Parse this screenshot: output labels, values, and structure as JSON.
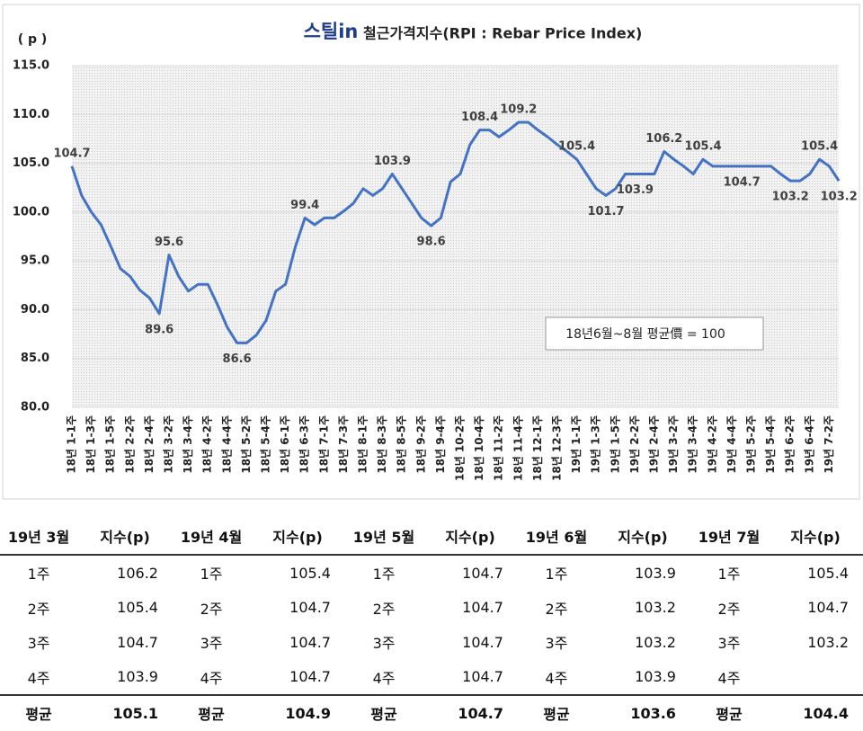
{
  "chart_data": {
    "type": "line",
    "logo": "스틸in",
    "title": "철근가격지수(RPI : Rebar Price Index)",
    "y_unit": "( p )",
    "note": "18년6월~8월 평균價 = 100",
    "categories": [
      "18년 1-1주",
      null,
      "18년 1-3주",
      null,
      "18년 1-5주",
      null,
      "18년 2-2주",
      null,
      "18년 2-4주",
      null,
      "18년 3-2주",
      null,
      "18년 3-4주",
      null,
      "18년 4-2주",
      null,
      "18년 4-4주",
      null,
      "18년 5-2주",
      null,
      "18년 5-4주",
      null,
      "18년 6-1주",
      null,
      "18년 6-3주",
      null,
      "18년 7-1주",
      null,
      "18년 7-3주",
      null,
      "18년 8-1주",
      null,
      "18년 8-3주",
      null,
      "18년 8-5주",
      null,
      "18년 9-2주",
      null,
      "18년 9-4주",
      null,
      "18년 10-2주",
      null,
      "18년 10-4주",
      null,
      "18년 11-2주",
      null,
      "18년 11-4주",
      null,
      "18년 12-1주",
      null,
      "18년 12-3주",
      null,
      "19년 1-1주",
      null,
      "19년 1-3주",
      null,
      "19년 1-5주",
      null,
      "19년 2-2주",
      null,
      "19년 2-4주",
      null,
      "19년 3-2주",
      null,
      "19년 3-4주",
      null,
      "19년 4-2주",
      null,
      "19년 4-4주",
      null,
      "19년 5-2주",
      null,
      "19년 5-4주",
      null,
      "19년 6-2주",
      null,
      "19년 6-4주",
      null,
      "19년 7-2주",
      null
    ],
    "values": [
      104.7,
      101.7,
      100.0,
      98.7,
      96.5,
      94.2,
      93.4,
      92.0,
      91.2,
      89.6,
      95.6,
      93.4,
      91.9,
      92.6,
      92.6,
      90.5,
      88.2,
      86.6,
      86.6,
      87.4,
      88.9,
      91.9,
      92.6,
      96.4,
      99.4,
      98.7,
      99.4,
      99.4,
      100.1,
      100.9,
      102.4,
      101.7,
      102.4,
      103.9,
      102.4,
      100.9,
      99.4,
      98.6,
      99.4,
      103.1,
      103.9,
      106.9,
      108.4,
      108.4,
      107.7,
      108.4,
      109.2,
      109.2,
      108.4,
      107.7,
      106.9,
      106.2,
      105.4,
      103.9,
      102.4,
      101.7,
      102.4,
      103.9,
      103.9,
      103.9,
      103.9,
      106.2,
      105.4,
      104.7,
      103.9,
      105.4,
      104.7,
      104.7,
      104.7,
      104.7,
      104.7,
      104.7,
      104.7,
      103.9,
      103.2,
      103.2,
      103.9,
      105.4,
      104.7,
      103.2
    ],
    "data_labels": {
      "above": [
        0,
        10,
        24,
        33,
        42,
        46,
        52,
        61,
        65,
        77
      ],
      "below": [
        9,
        17,
        37,
        55,
        58,
        69,
        74,
        79
      ]
    },
    "color": "#4472c4",
    "ylim": [
      80,
      115
    ],
    "yticks": [
      {
        "value": 80,
        "label": "80.0"
      },
      {
        "value": 85,
        "label": "85.0"
      },
      {
        "value": 90,
        "label": "90.0"
      },
      {
        "value": 95,
        "label": "95.0"
      },
      {
        "value": 100,
        "label": "100.0"
      },
      {
        "value": 105,
        "label": "105.0"
      },
      {
        "value": 110,
        "label": "110.0"
      },
      {
        "value": 115,
        "label": "115.0"
      }
    ]
  },
  "table": {
    "headers": [
      "19년 3월",
      "지수(p)",
      "19년 4월",
      "지수(p)",
      "19년 5월",
      "지수(p)",
      "19년 6월",
      "지수(p)",
      "19년 7월",
      "지수(p)"
    ],
    "rows": [
      [
        "1주",
        "106.2",
        "1주",
        "105.4",
        "1주",
        "104.7",
        "1주",
        "103.9",
        "1주",
        "105.4"
      ],
      [
        "2주",
        "105.4",
        "2주",
        "104.7",
        "2주",
        "104.7",
        "2주",
        "103.2",
        "2주",
        "104.7"
      ],
      [
        "3주",
        "104.7",
        "3주",
        "104.7",
        "3주",
        "104.7",
        "3주",
        "103.2",
        "3주",
        "103.2"
      ],
      [
        "4주",
        "103.9",
        "4주",
        "104.7",
        "4주",
        "104.7",
        "4주",
        "103.9",
        "4주",
        null
      ]
    ],
    "footer": [
      "평균",
      "105.1",
      "평균",
      "104.9",
      "평균",
      "104.7",
      "평균",
      "103.6",
      "평균",
      "104.4"
    ]
  }
}
